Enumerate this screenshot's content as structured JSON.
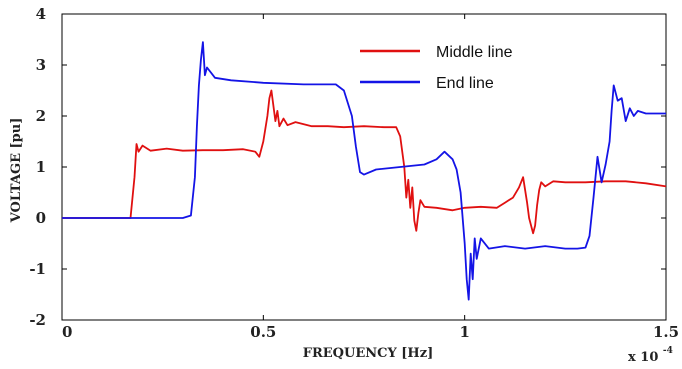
{
  "chart_data": {
    "type": "line",
    "xlabel": "FREQUENCY [Hz]",
    "ylabel": "VOLTAGE [pu]",
    "x_multiplier_label": "x 10",
    "x_multiplier_exp": "-4",
    "xlim": [
      0,
      1.5
    ],
    "ylim": [
      -2,
      4
    ],
    "x_ticks": [
      {
        "value": 0,
        "label": "0"
      },
      {
        "value": 0.5,
        "label": "0.5"
      },
      {
        "value": 1,
        "label": "1"
      },
      {
        "value": 1.5,
        "label": "1.5"
      }
    ],
    "y_ticks": [
      {
        "value": -2,
        "label": "-2"
      },
      {
        "value": -1,
        "label": "-1"
      },
      {
        "value": 0,
        "label": "0"
      },
      {
        "value": 1,
        "label": "1"
      },
      {
        "value": 2,
        "label": "2"
      },
      {
        "value": 3,
        "label": "3"
      },
      {
        "value": 4,
        "label": "4"
      }
    ],
    "legend": "top-right",
    "series": [
      {
        "name": "Middle line",
        "color": "#e01010",
        "x": [
          0,
          0.17,
          0.18,
          0.185,
          0.19,
          0.2,
          0.22,
          0.26,
          0.3,
          0.35,
          0.4,
          0.45,
          0.48,
          0.49,
          0.5,
          0.51,
          0.515,
          0.52,
          0.525,
          0.53,
          0.535,
          0.54,
          0.55,
          0.56,
          0.58,
          0.62,
          0.66,
          0.7,
          0.75,
          0.8,
          0.83,
          0.84,
          0.85,
          0.855,
          0.86,
          0.865,
          0.87,
          0.875,
          0.88,
          0.885,
          0.89,
          0.9,
          0.93,
          0.97,
          1.0,
          1.04,
          1.08,
          1.1,
          1.12,
          1.135,
          1.145,
          1.155,
          1.16,
          1.17,
          1.175,
          1.18,
          1.185,
          1.19,
          1.2,
          1.22,
          1.25,
          1.3,
          1.35,
          1.4,
          1.45,
          1.5
        ],
        "y": [
          0,
          0,
          0.8,
          1.45,
          1.3,
          1.42,
          1.32,
          1.36,
          1.32,
          1.33,
          1.33,
          1.35,
          1.3,
          1.2,
          1.5,
          2.0,
          2.35,
          2.5,
          2.2,
          1.9,
          2.1,
          1.8,
          1.95,
          1.82,
          1.88,
          1.8,
          1.8,
          1.78,
          1.8,
          1.78,
          1.78,
          1.6,
          1.0,
          0.4,
          0.75,
          0.2,
          0.6,
          -0.05,
          -0.25,
          0.1,
          0.35,
          0.22,
          0.2,
          0.15,
          0.2,
          0.22,
          0.2,
          0.3,
          0.4,
          0.6,
          0.8,
          0.3,
          0.0,
          -0.3,
          -0.15,
          0.25,
          0.55,
          0.7,
          0.62,
          0.72,
          0.7,
          0.7,
          0.72,
          0.72,
          0.68,
          0.62
        ]
      },
      {
        "name": "End line",
        "color": "#1414e6",
        "x": [
          0,
          0.3,
          0.32,
          0.33,
          0.335,
          0.34,
          0.345,
          0.35,
          0.355,
          0.36,
          0.38,
          0.42,
          0.5,
          0.6,
          0.65,
          0.68,
          0.7,
          0.72,
          0.73,
          0.74,
          0.75,
          0.78,
          0.84,
          0.9,
          0.93,
          0.95,
          0.97,
          0.98,
          0.99,
          1.0,
          1.005,
          1.01,
          1.015,
          1.02,
          1.025,
          1.03,
          1.04,
          1.06,
          1.1,
          1.15,
          1.2,
          1.25,
          1.28,
          1.3,
          1.31,
          1.32,
          1.33,
          1.34,
          1.35,
          1.36,
          1.365,
          1.37,
          1.38,
          1.39,
          1.4,
          1.41,
          1.42,
          1.43,
          1.45,
          1.48,
          1.5
        ],
        "y": [
          0,
          0,
          0.05,
          0.8,
          1.8,
          2.6,
          3.1,
          3.45,
          2.8,
          2.95,
          2.75,
          2.7,
          2.65,
          2.62,
          2.62,
          2.62,
          2.5,
          2.0,
          1.4,
          0.9,
          0.85,
          0.95,
          1.0,
          1.05,
          1.15,
          1.3,
          1.15,
          0.95,
          0.5,
          -0.5,
          -1.2,
          -1.6,
          -0.7,
          -1.2,
          -0.4,
          -0.8,
          -0.4,
          -0.6,
          -0.55,
          -0.6,
          -0.55,
          -0.6,
          -0.6,
          -0.58,
          -0.35,
          0.4,
          1.2,
          0.7,
          1.05,
          1.5,
          2.1,
          2.6,
          2.3,
          2.35,
          1.9,
          2.15,
          2.0,
          2.1,
          2.05,
          2.05,
          2.05
        ]
      }
    ]
  }
}
